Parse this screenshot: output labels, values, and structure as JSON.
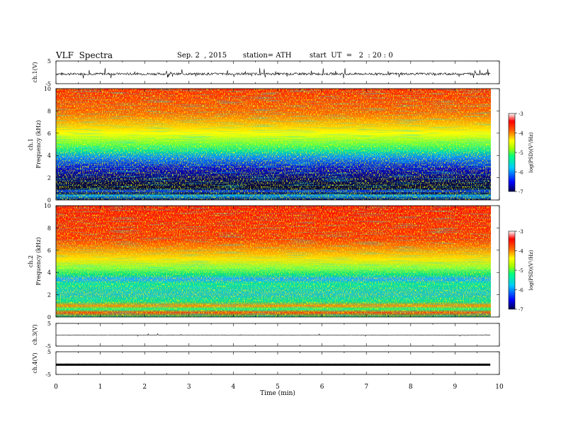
{
  "header": {
    "title": "VLF  Spectra",
    "date": "Sep. 2  , 2015",
    "station": "station= ATH",
    "start": "start  UT  =   2  : 20 : 0"
  },
  "chart_data": {
    "type": "heatmap",
    "xlabel": "Time  (min)",
    "xlim": [
      0,
      10
    ],
    "xticks": [
      "0",
      "1",
      "2",
      "3",
      "4",
      "5",
      "6",
      "7",
      "8",
      "9",
      "10"
    ],
    "data_end_min": 9.8,
    "panels": [
      {
        "id": "ch1-waveform",
        "type": "line",
        "ylabel": "ch.1(V)",
        "ylim": [
          -5,
          5
        ],
        "yticks": [
          "5",
          "-5"
        ],
        "baseline": -0.7,
        "noise_amplitude": 1.0
      },
      {
        "id": "ch1-spectrogram",
        "type": "heatmap",
        "ylabel_top": "ch.1",
        "ylabel": "Frequency  (kHz)",
        "ylim": [
          0,
          10
        ],
        "yticks": [
          "0",
          "2",
          "4",
          "6",
          "8",
          "10"
        ]
      },
      {
        "id": "ch2-spectrogram",
        "type": "heatmap",
        "ylabel_top": "ch.2",
        "ylabel": "Frequency  (kHz)",
        "ylim": [
          0,
          10
        ],
        "yticks": [
          "0",
          "2",
          "4",
          "6",
          "8",
          "10"
        ]
      },
      {
        "id": "ch3-waveform",
        "type": "line",
        "ylabel": "ch.3(V)",
        "ylim": [
          -5,
          5
        ],
        "yticks": [
          "5",
          "-5"
        ],
        "baseline": -0.2,
        "noise_amplitude": 0.15
      },
      {
        "id": "ch4-waveform",
        "type": "line",
        "ylabel": "ch.4(V)",
        "ylim": [
          -5,
          5
        ],
        "yticks": [
          "5",
          "-5"
        ],
        "baseline": -0.7,
        "noise_amplitude": 0.05
      }
    ],
    "colorbar": {
      "label": "log(PSD)(V²/Hz)",
      "range": [
        -7,
        -3
      ],
      "ticks": [
        "-3",
        "-4",
        "-5",
        "-6",
        "-7"
      ],
      "colors": [
        "#000050",
        "#0000ff",
        "#00c8ff",
        "#00ff80",
        "#ffff00",
        "#ff6000",
        "#ff0000",
        "#ffffff"
      ]
    }
  }
}
